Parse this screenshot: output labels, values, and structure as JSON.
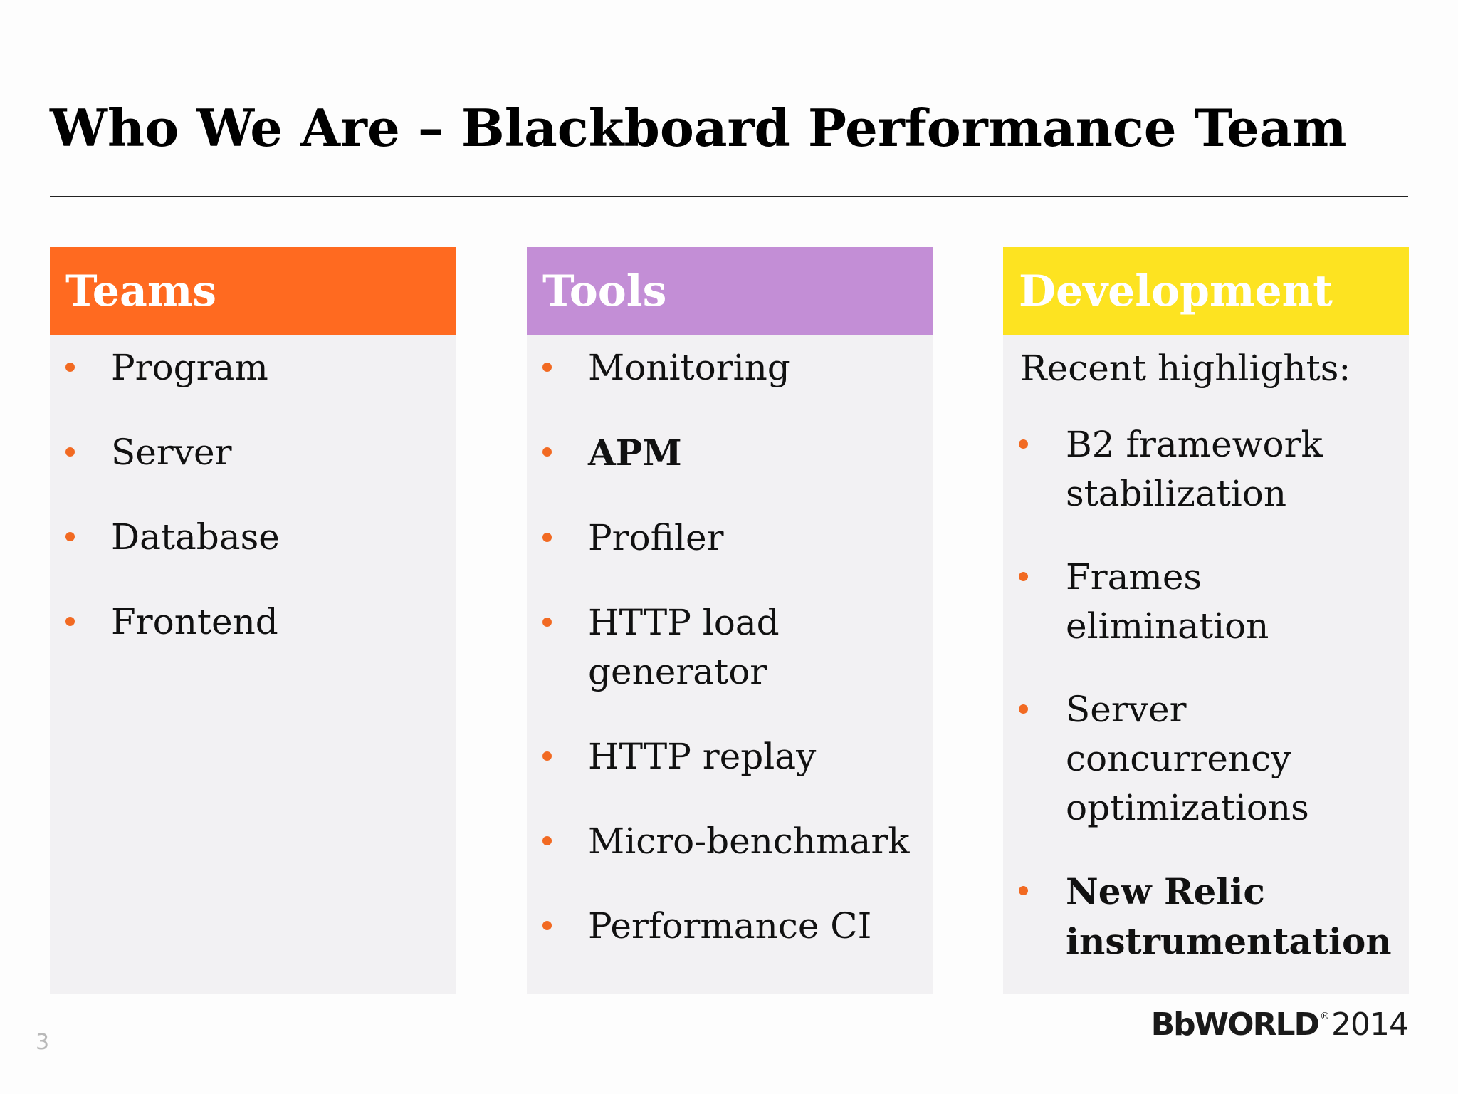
{
  "slide": {
    "title": "Who We Are – Blackboard Performance Team",
    "page_number": "3"
  },
  "colors": {
    "teams_header": "#ff6a20",
    "tools_header": "#c38ed6",
    "development_header": "#fde321",
    "bullet": "#f26a22",
    "panel_background": "#f2f1f3"
  },
  "teams": {
    "header": "Teams",
    "items": [
      "Program",
      "Server",
      "Database",
      "Frontend"
    ]
  },
  "tools": {
    "header": "Tools",
    "items": [
      "Monitoring",
      "APM",
      "Profiler",
      "HTTP load generator",
      "HTTP replay",
      "Micro-benchmark",
      "Performance CI"
    ]
  },
  "development": {
    "header": "Development",
    "intro": "Recent highlights:",
    "items": [
      "B2 framework stabilization",
      "Frames elimination",
      "Server concurrency optimizations",
      "New Relic instrumentation"
    ]
  },
  "logo": {
    "brand": "BbWORLD",
    "registered": "®",
    "year": "2014"
  }
}
